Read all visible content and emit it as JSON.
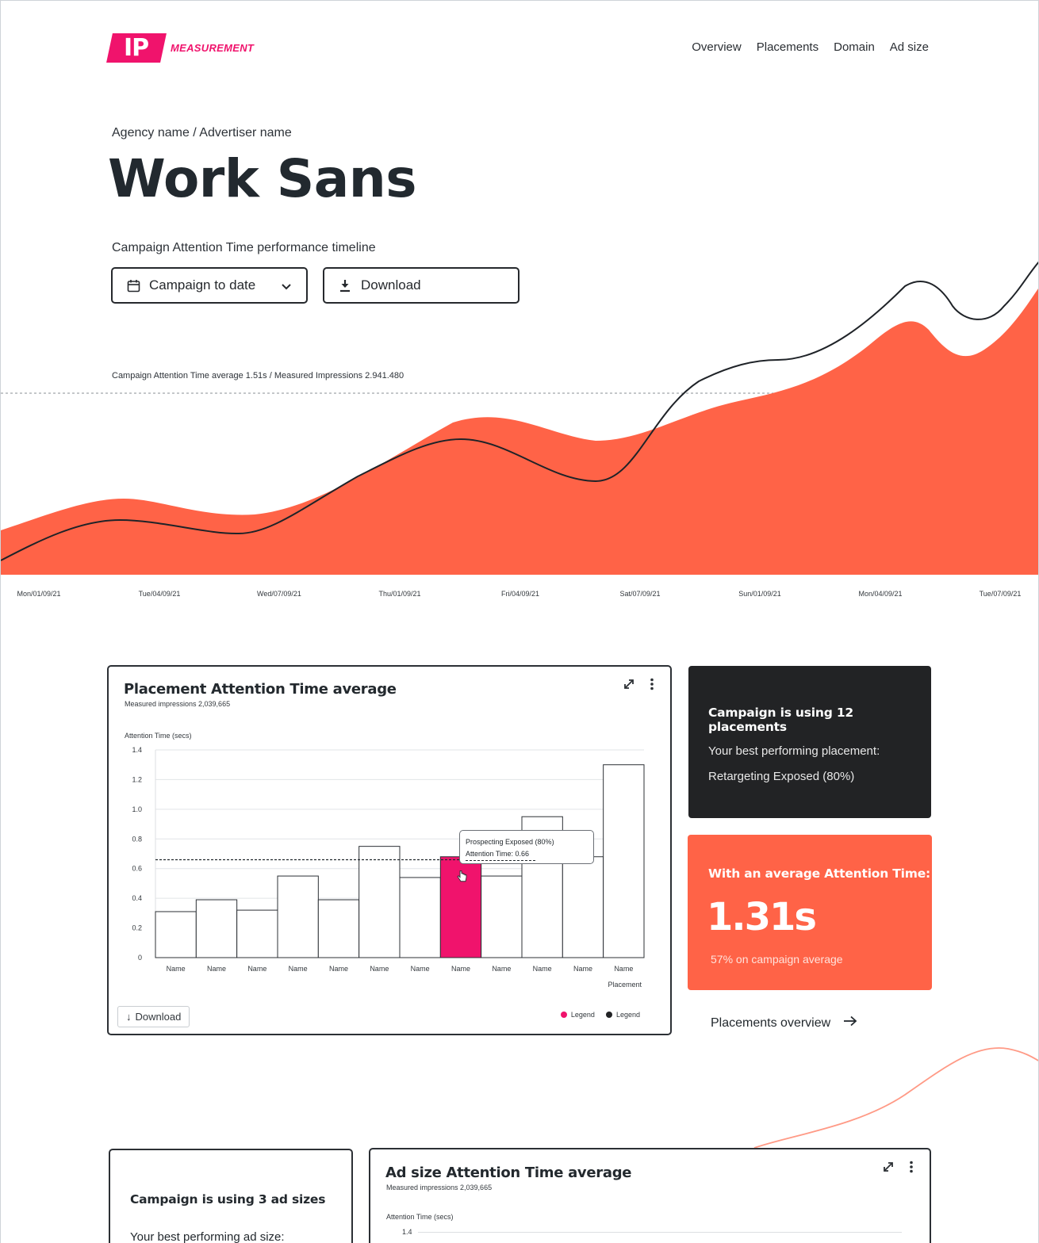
{
  "header": {
    "logo_mark": "IP",
    "logo_text": "MEASUREMENT",
    "brand_color": "#f0136c",
    "nav": [
      "Overview",
      "Placements",
      "Domain",
      "Ad size"
    ]
  },
  "breadcrumb": "Agency name / Advertiser name",
  "page_title": "Work Sans",
  "timeline": {
    "subtitle": "Campaign Attention Time performance timeline",
    "range_select": "Campaign to date",
    "download_label": "Download",
    "average_note": "Campaign Attention Time average 1.51s / Measured Impressions 2.941.480",
    "dates": [
      "Mon/01/09/21",
      "Tue/04/09/21",
      "Wed/07/09/21",
      "Thu/01/09/21",
      "Fri/04/09/21",
      "Sat/07/09/21",
      "Sun/01/09/21",
      "Mon/04/09/21",
      "Tue/07/09/21"
    ],
    "area_color": "#ff6347",
    "line_color": "#1f2328"
  },
  "placement_card": {
    "title": "Placement Attention Time average",
    "subtitle": "Measured impressions 2,039,665",
    "download_label": "Download",
    "legend": [
      {
        "label": "Legend",
        "color": "#f0136c"
      },
      {
        "label": "Legend",
        "color": "#222325"
      }
    ],
    "tooltip": {
      "line1": "Prospecting Exposed (80%)",
      "line2": "Attention Time: 0.66"
    }
  },
  "chart_data": {
    "type": "bar",
    "title": "Placement Attention Time average",
    "ylabel": "Attention Time (secs)",
    "xlabel": "Placement",
    "categories": [
      "Name",
      "Name",
      "Name",
      "Name",
      "Name",
      "Name",
      "Name",
      "Name",
      "Name",
      "Name",
      "Name",
      "Name"
    ],
    "values": [
      0.31,
      0.39,
      0.32,
      0.55,
      0.39,
      0.75,
      0.54,
      0.68,
      0.55,
      0.95,
      0.68,
      1.3
    ],
    "highlight_index": 7,
    "highlight_color": "#f0136c",
    "average_line": 0.66,
    "yticks": [
      "0",
      "0.2",
      "0.4",
      "0.6",
      "0.8",
      "1.0",
      "1.2",
      "1.4"
    ],
    "ylim": [
      0,
      1.4
    ],
    "grid": true
  },
  "placements_panel": {
    "heading": "Campaign is using 12 placements",
    "best_label": "Your best performing placement:",
    "best_value": "Retargeting Exposed (80%)"
  },
  "attention_panel": {
    "heading": "With an average Attention Time:",
    "value": "1.31s",
    "comparison": "57% on campaign average",
    "color": "#ff6347"
  },
  "placements_link": "Placements overview",
  "adsizes_panel": {
    "heading": "Campaign is using 3 ad sizes",
    "best_label": "Your best performing ad size:"
  },
  "adsize_card": {
    "title": "Ad size Attention Time average",
    "subtitle": "Measured impressions 2,039,665",
    "ylabel": "Attention Time (secs)",
    "top_tick": "1.4"
  }
}
